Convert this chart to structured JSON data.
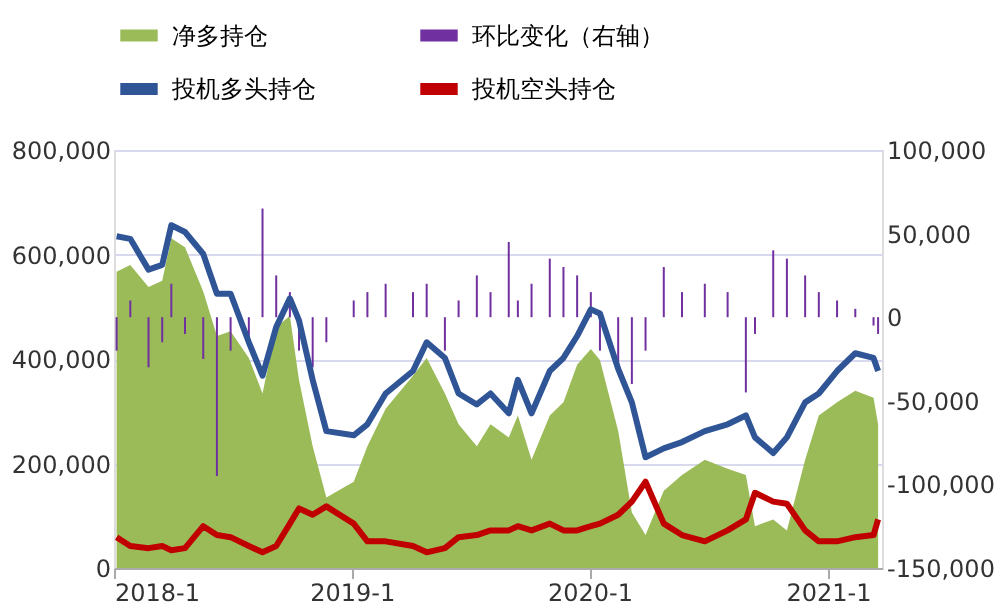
{
  "chart_data": {
    "type": "line",
    "x": [
      "2018-01-05",
      "2018-01-26",
      "2018-02-23",
      "2018-03-16",
      "2018-03-30",
      "2018-04-20",
      "2018-05-18",
      "2018-06-08",
      "2018-06-29",
      "2018-07-27",
      "2018-08-17",
      "2018-09-07",
      "2018-09-28",
      "2018-10-12",
      "2018-11-02",
      "2018-11-23",
      "2019-01-04",
      "2019-01-25",
      "2019-02-22",
      "2019-04-05",
      "2019-04-26",
      "2019-05-24",
      "2019-06-14",
      "2019-07-12",
      "2019-08-02",
      "2019-08-30",
      "2019-09-13",
      "2019-10-04",
      "2019-11-01",
      "2019-11-22",
      "2019-12-13",
      "2020-01-03",
      "2020-01-17",
      "2020-02-14",
      "2020-03-06",
      "2020-03-27",
      "2020-04-24",
      "2020-05-22",
      "2020-06-26",
      "2020-07-31",
      "2020-08-28",
      "2020-09-11",
      "2020-10-09",
      "2020-10-30",
      "2020-11-27",
      "2020-12-18",
      "2021-01-15",
      "2021-02-12",
      "2021-03-12",
      "2021-03-19"
    ],
    "series": [
      {
        "name": "净多持仓",
        "type": "area",
        "color": "#9bbb59",
        "values": [
          567000,
          580000,
          538000,
          550000,
          631000,
          614000,
          529000,
          444000,
          453000,
          402000,
          334000,
          461000,
          483000,
          360000,
          233000,
          135000,
          165000,
          233000,
          305000,
          368000,
          402000,
          334000,
          275000,
          233000,
          275000,
          250000,
          292000,
          207000,
          292000,
          317000,
          389000,
          419000,
          398000,
          262000,
          106000,
          63000,
          148000,
          178000,
          207000,
          190000,
          178000,
          80000,
          93000,
          72000,
          207000,
          292000,
          317000,
          339000,
          326000,
          275000
        ]
      },
      {
        "name": "环比变化（右轴）",
        "type": "bar",
        "axis": "y2",
        "color": "#7030a0",
        "values": [
          -20000,
          10000,
          -30000,
          -15000,
          20000,
          -10000,
          -25000,
          -95000,
          -20000,
          -15000,
          65000,
          25000,
          15000,
          -20000,
          -30000,
          -15000,
          10000,
          15000,
          20000,
          15000,
          20000,
          -20000,
          10000,
          25000,
          15000,
          45000,
          10000,
          20000,
          35000,
          30000,
          25000,
          15000,
          -20000,
          -30000,
          -40000,
          -20000,
          30000,
          15000,
          20000,
          15000,
          -45000,
          -10000,
          40000,
          35000,
          25000,
          15000,
          10000,
          5000,
          -5000,
          -10000
        ]
      },
      {
        "name": "投机多头持仓",
        "color": "#2f5597",
        "values": [
          635000,
          630000,
          571000,
          580000,
          656000,
          643000,
          601000,
          525000,
          525000,
          432000,
          368000,
          461000,
          516000,
          474000,
          360000,
          262000,
          254000,
          275000,
          334000,
          377000,
          432000,
          402000,
          334000,
          313000,
          334000,
          296000,
          360000,
          296000,
          377000,
          402000,
          444000,
          495000,
          487000,
          381000,
          317000,
          212000,
          229000,
          241000,
          262000,
          275000,
          292000,
          250000,
          220000,
          250000,
          317000,
          334000,
          377000,
          411000,
          402000,
          377000
        ]
      },
      {
        "name": "投机空头持仓",
        "color": "#c00000",
        "values": [
          59000,
          42000,
          38000,
          42000,
          34000,
          38000,
          80000,
          63000,
          59000,
          42000,
          30000,
          42000,
          85000,
          114000,
          102000,
          118000,
          85000,
          51000,
          51000,
          42000,
          30000,
          38000,
          59000,
          63000,
          72000,
          72000,
          80000,
          72000,
          85000,
          72000,
          72000,
          80000,
          85000,
          102000,
          127000,
          165000,
          85000,
          63000,
          51000,
          72000,
          93000,
          144000,
          127000,
          123000,
          72000,
          51000,
          51000,
          59000,
          63000,
          93000
        ]
      }
    ],
    "xlim": [
      "2018-01-01",
      "2021-03-25"
    ],
    "xticks": [
      {
        "value": "2018-01-01",
        "label": "2018-1"
      },
      {
        "value": "2019-01-01",
        "label": "2019-1"
      },
      {
        "value": "2020-01-01",
        "label": "2020-1"
      },
      {
        "value": "2021-01-01",
        "label": "2021-1"
      }
    ],
    "ylim": [
      0,
      800000
    ],
    "yticks": [
      0,
      {
        "value": 200000,
        "label": "200,000"
      },
      {
        "value": 400000,
        "label": "400,000"
      },
      {
        "value": 600000,
        "label": "600,000"
      },
      {
        "value": 800000,
        "label": "800,000"
      }
    ],
    "y2lim": [
      -150000,
      100000
    ],
    "y2ticks": [
      {
        "value": -150000,
        "label": "-150,000"
      },
      {
        "value": -100000,
        "label": "-100,000"
      },
      {
        "value": -50000,
        "label": "-50,000"
      },
      0,
      {
        "value": 50000,
        "label": "50,000"
      },
      {
        "value": 100000,
        "label": "100,000"
      }
    ],
    "grid": "y",
    "legend": "top",
    "line_style": "solid",
    "marker": "none"
  }
}
